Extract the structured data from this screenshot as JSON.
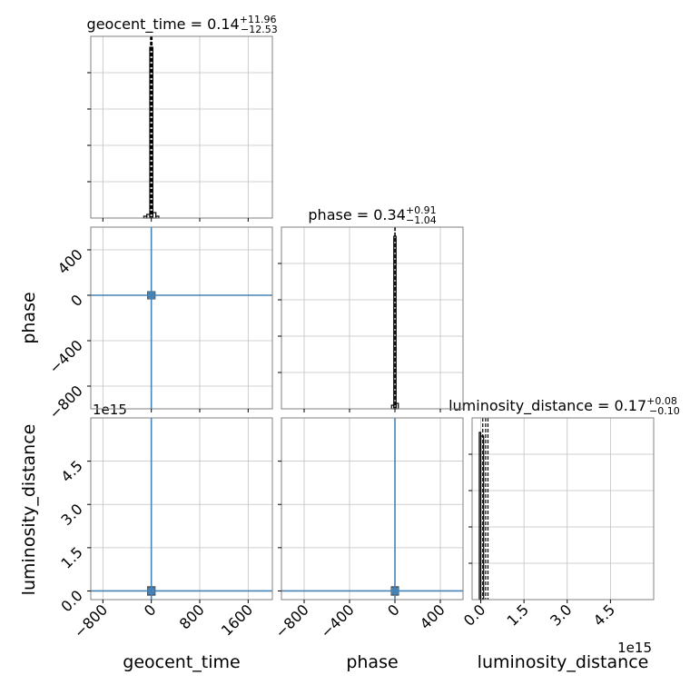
{
  "chart_data": [
    {
      "type": "histogram",
      "panel": "geocent_time",
      "title": {
        "prefix": "geocent_time = 0.14",
        "sup": "+11.96",
        "sub": "−12.53"
      },
      "xlim": [
        -1000,
        2000
      ],
      "ylim": [
        0,
        1.0
      ],
      "bins": [
        {
          "x0": -125,
          "x1": -75,
          "y": 0.01
        },
        {
          "x0": -75,
          "x1": -25,
          "y": 0.02
        },
        {
          "x0": -25,
          "x1": 25,
          "y": 0.94
        },
        {
          "x0": 25,
          "x1": 75,
          "y": 0.03
        },
        {
          "x0": 75,
          "x1": 125,
          "y": 0.01
        }
      ],
      "quantile_lines": [
        -12.39,
        0.14,
        12.1
      ],
      "xticks": [
        -800,
        0,
        800,
        1600
      ],
      "yticks": [
        0.2,
        0.4,
        0.6,
        0.8
      ]
    },
    {
      "type": "scatter-density",
      "panel": "phase vs geocent_time",
      "x_param": "geocent_time",
      "y_param": "phase",
      "xlim": [
        -1000,
        2000
      ],
      "ylim": [
        -1000,
        600
      ],
      "truth": {
        "x": 0,
        "y": 0
      },
      "core": {
        "x": 0,
        "y": 0,
        "half_w": 40,
        "half_h": 20
      },
      "xticks": [
        -800,
        0,
        800,
        1600
      ],
      "yticks": [
        -800,
        -400,
        0,
        400
      ],
      "ytick_labels": [
        "−800",
        "−400",
        "0",
        "400"
      ]
    },
    {
      "type": "histogram",
      "panel": "phase",
      "title": {
        "prefix": "phase = 0.34",
        "sup": "+0.91",
        "sub": "−1.04"
      },
      "xlim": [
        -1000,
        600
      ],
      "ylim": [
        0,
        1.0
      ],
      "bins": [
        {
          "x0": -30,
          "x1": -10,
          "y": 0.02
        },
        {
          "x0": -10,
          "x1": 10,
          "y": 0.95
        },
        {
          "x0": 10,
          "x1": 30,
          "y": 0.03
        }
      ],
      "quantile_lines": [
        -0.7,
        0.34,
        1.25
      ],
      "xticks": [
        -800,
        -400,
        0,
        400
      ],
      "yticks": [
        0.2,
        0.4,
        0.6,
        0.8
      ]
    },
    {
      "type": "scatter-density",
      "panel": "luminosity_distance vs geocent_time",
      "x_param": "geocent_time",
      "y_param": "luminosity_distance",
      "xlim": [
        -1000,
        2000
      ],
      "ylim": [
        -0.3,
        6.0
      ],
      "truth": {
        "x": 0,
        "y": 0
      },
      "core": {
        "x": 0,
        "y": 0,
        "half_w": 40,
        "half_h": 0.1
      },
      "xticks": [
        -800,
        0,
        800,
        1600
      ],
      "xtick_labels": [
        "−800",
        "0",
        "800",
        "1600"
      ],
      "yticks": [
        0.0,
        1.5,
        3.0,
        4.5
      ],
      "ytick_labels": [
        "0.0",
        "1.5",
        "3.0",
        "4.5"
      ],
      "offset_text": "1e15"
    },
    {
      "type": "scatter-density",
      "panel": "luminosity_distance vs phase",
      "x_param": "phase",
      "y_param": "luminosity_distance",
      "xlim": [
        -1000,
        600
      ],
      "ylim": [
        -0.3,
        6.0
      ],
      "truth": {
        "x": 0,
        "y": 0
      },
      "core": {
        "x": 0,
        "y": 0,
        "half_w": 20,
        "half_h": 0.1
      },
      "xticks": [
        -800,
        -400,
        0,
        400
      ],
      "xtick_labels": [
        "−800",
        "−400",
        "0",
        "400"
      ],
      "yticks": [
        0.0,
        1.5,
        3.0,
        4.5
      ]
    },
    {
      "type": "histogram",
      "panel": "luminosity_distance",
      "title": {
        "prefix": "luminosity_distance = 0.17",
        "sup": "+0.08",
        "sub": "−0.10"
      },
      "xlim": [
        -0.3,
        6.0
      ],
      "ylim": [
        0,
        1.0
      ],
      "bins": [
        {
          "x0": -0.05,
          "x1": 0.0,
          "y": 0.92
        },
        {
          "x0": 0.0,
          "x1": 0.1,
          "y": 0.9
        }
      ],
      "quantile_lines": [
        0.07,
        0.17,
        0.25
      ],
      "xticks": [
        0.0,
        1.5,
        3.0,
        4.5
      ],
      "xtick_labels": [
        "0.0",
        "1.5",
        "3.0",
        "4.5"
      ],
      "yticks": [
        0.2,
        0.4,
        0.6,
        0.8
      ],
      "offset_text": "1e15"
    }
  ],
  "axis_labels": {
    "x": [
      "geocent_time",
      "phase",
      "luminosity_distance"
    ],
    "y": [
      "phase",
      "luminosity_distance"
    ]
  },
  "colors": {
    "truth": "#4682b4",
    "hist": "#000000",
    "grid": "#c0c0c0",
    "frame": "#808080"
  }
}
